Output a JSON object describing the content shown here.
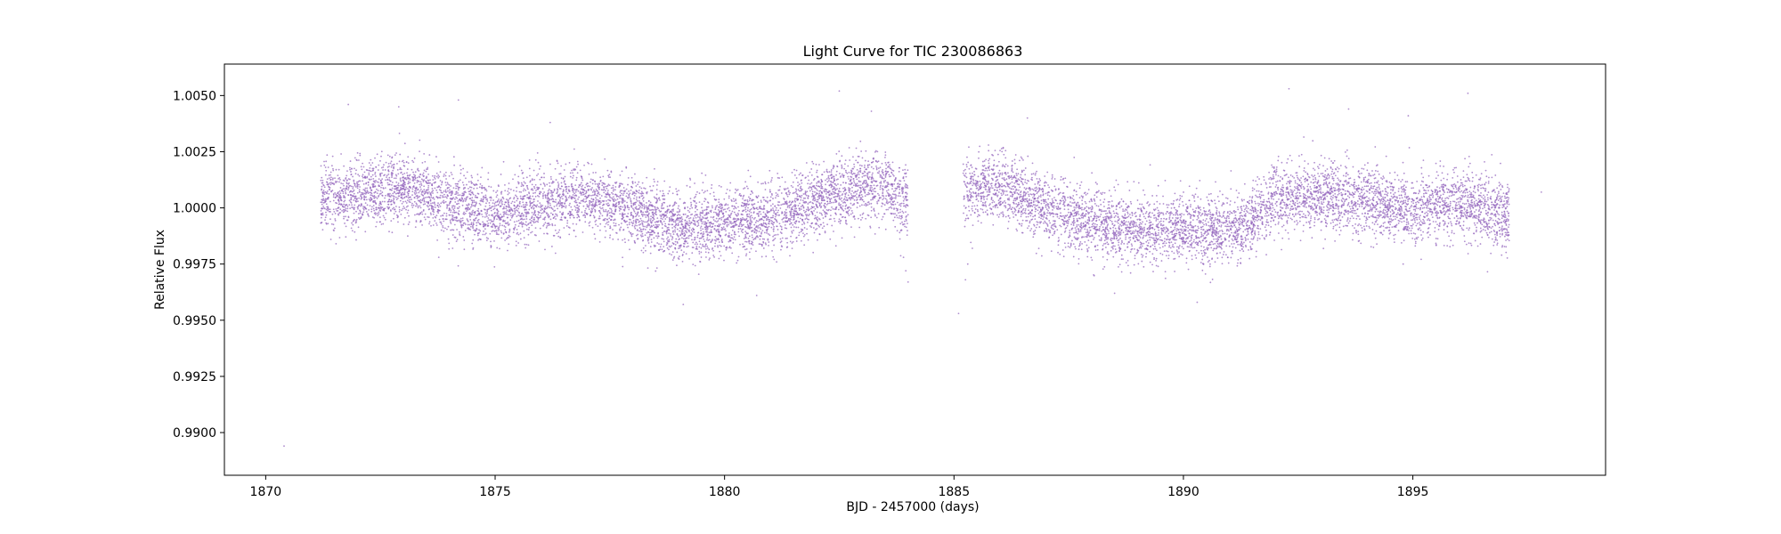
{
  "chart_data": {
    "type": "scatter",
    "title": "Light Curve for TIC 230086863",
    "xlabel": "BJD - 2457000 (days)",
    "ylabel": "Relative Flux",
    "xlim": [
      1869.1,
      1899.2
    ],
    "ylim": [
      0.9881,
      1.0064
    ],
    "xticks": [
      1870,
      1875,
      1880,
      1885,
      1890,
      1895
    ],
    "yticks": [
      0.99,
      0.9925,
      0.995,
      0.9975,
      1.0,
      1.0025,
      1.005
    ],
    "xtick_labels": [
      "1870",
      "1875",
      "1880",
      "1885",
      "1890",
      "1895"
    ],
    "ytick_labels": [
      "0.9900",
      "0.9925",
      "0.9950",
      "0.9975",
      "1.0000",
      "1.0025",
      "1.0050"
    ],
    "grid": false,
    "marker_color": "#9467bd",
    "segments": [
      {
        "x_start": 1871.2,
        "x_end": 1884.0
      },
      {
        "x_start": 1885.2,
        "x_end": 1897.1
      }
    ],
    "trend": [
      [
        1871.2,
        1.0004
      ],
      [
        1872.0,
        1.0006
      ],
      [
        1873.0,
        1.0009
      ],
      [
        1874.0,
        1.0002
      ],
      [
        1875.0,
        0.9996
      ],
      [
        1876.0,
        1.0002
      ],
      [
        1877.0,
        1.0004
      ],
      [
        1878.0,
        0.9999
      ],
      [
        1879.0,
        0.9991
      ],
      [
        1880.0,
        0.9993
      ],
      [
        1881.0,
        0.9996
      ],
      [
        1882.0,
        1.0003
      ],
      [
        1883.0,
        1.0009
      ],
      [
        1883.6,
        1.001
      ],
      [
        1883.9,
        1.0001
      ],
      [
        1885.2,
        1.0008
      ],
      [
        1886.0,
        1.0011
      ],
      [
        1887.0,
        1.0
      ],
      [
        1888.0,
        0.9993
      ],
      [
        1889.0,
        0.999
      ],
      [
        1890.0,
        0.9991
      ],
      [
        1891.0,
        0.999
      ],
      [
        1891.5,
        0.9995
      ],
      [
        1892.0,
        1.0004
      ],
      [
        1893.0,
        1.0006
      ],
      [
        1894.0,
        1.0003
      ],
      [
        1895.0,
        0.9999
      ],
      [
        1896.0,
        1.0002
      ],
      [
        1897.1,
        0.9997
      ]
    ],
    "scatter_sigma": 0.00075,
    "n_points_approx": 11500,
    "points": [
      [
        1870.4,
        0.9894
      ],
      [
        1897.8,
        1.0007
      ],
      [
        1885.1,
        0.9953
      ],
      [
        1882.5,
        1.0052
      ],
      [
        1892.3,
        1.0053
      ],
      [
        1874.2,
        1.0048
      ],
      [
        1896.2,
        1.0051
      ],
      [
        1871.8,
        1.0046
      ],
      [
        1883.2,
        1.0043
      ],
      [
        1879.1,
        0.9957
      ],
      [
        1890.3,
        0.9958
      ],
      [
        1884.0,
        0.9967
      ],
      [
        1883.95,
        0.9972
      ],
      [
        1883.9,
        0.9978
      ],
      [
        1885.25,
        0.9968
      ],
      [
        1885.3,
        0.9975
      ],
      [
        1885.4,
        0.9982
      ],
      [
        1876.2,
        1.0038
      ],
      [
        1893.6,
        1.0044
      ],
      [
        1894.9,
        1.0041
      ],
      [
        1888.5,
        0.9962
      ],
      [
        1880.7,
        0.9961
      ],
      [
        1872.9,
        1.0045
      ],
      [
        1886.6,
        1.004
      ]
    ]
  }
}
